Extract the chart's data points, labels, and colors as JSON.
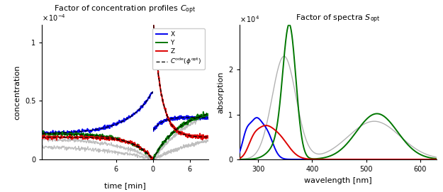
{
  "left_title": "Factor of concentration profiles $C_{\\mathrm{opt}}$",
  "right_title": "Factor of spectra $S_{\\mathrm{opt}}$",
  "left_xlabel": "time [min]",
  "left_ylabel": "concentration",
  "right_xlabel": "wavelength [nm]",
  "right_ylabel": "absorption",
  "colors": {
    "X": "#0000ee",
    "Y": "#007700",
    "Z": "#dd0000",
    "gray": "#aaaaaa",
    "dashed": "#000000"
  },
  "left_ylim": [
    0,
    0.000115
  ],
  "right_ylim": [
    0,
    30000.0
  ],
  "noise_scale": 8e-07
}
